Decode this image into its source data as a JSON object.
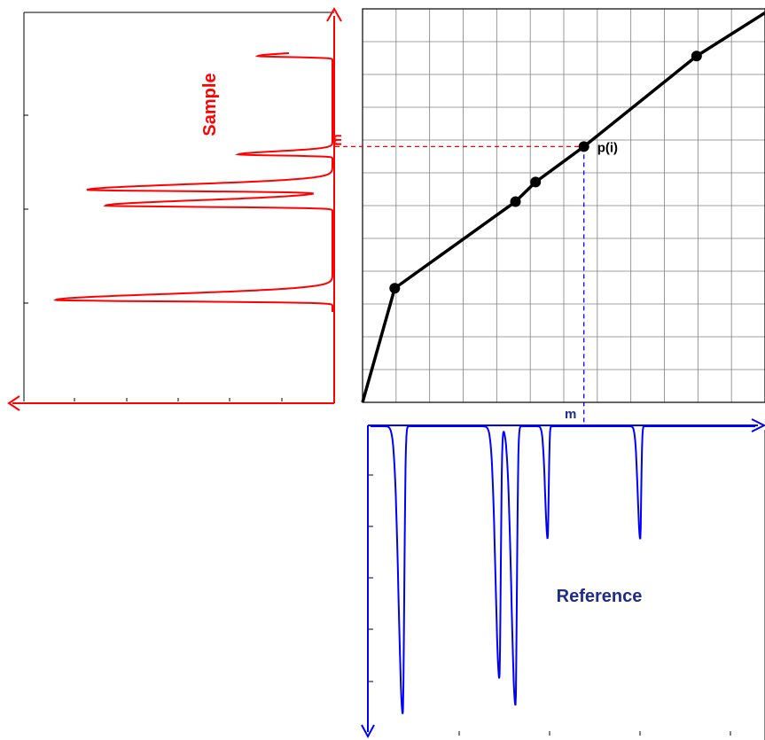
{
  "labels": {
    "sample": "Sample",
    "reference": "Reference",
    "point": "p(i)",
    "marker_sample": "m",
    "marker_reference": "m"
  },
  "colors": {
    "sample": "#ff0000",
    "reference": "#0000ff",
    "reference_label": "#1f2d8a",
    "warp": "#000000",
    "grid": "#808080",
    "marker_sample_line": "#ff0000",
    "marker_reference_line": "#0000ff"
  },
  "grid": {
    "columns": 12,
    "rows": 12
  },
  "warping_path": {
    "points": [
      [
        0,
        0
      ],
      [
        0.08,
        0.29
      ],
      [
        0.38,
        0.51
      ],
      [
        0.43,
        0.56
      ],
      [
        0.55,
        0.65
      ],
      [
        0.83,
        0.88
      ],
      [
        1,
        0.99
      ]
    ],
    "markers": [
      [
        0.08,
        0.29
      ],
      [
        0.38,
        0.51
      ],
      [
        0.43,
        0.56
      ],
      [
        0.55,
        0.65
      ],
      [
        0.83,
        0.88
      ]
    ],
    "highlighted_marker": [
      0.55,
      0.65
    ]
  },
  "sample_peaks": [
    {
      "position": 0.88,
      "height": 0.27
    },
    {
      "position": 0.63,
      "height": 0.34
    },
    {
      "position": 0.54,
      "height": 0.88
    },
    {
      "position": 0.5,
      "height": 0.82
    },
    {
      "position": 0.26,
      "height": 1.0
    }
  ],
  "reference_peaks": [
    {
      "position": 0.1,
      "height": 0.97
    },
    {
      "position": 0.34,
      "height": 0.85
    },
    {
      "position": 0.38,
      "height": 0.94
    },
    {
      "position": 0.46,
      "height": 0.38
    },
    {
      "position": 0.69,
      "height": 0.38
    }
  ]
}
